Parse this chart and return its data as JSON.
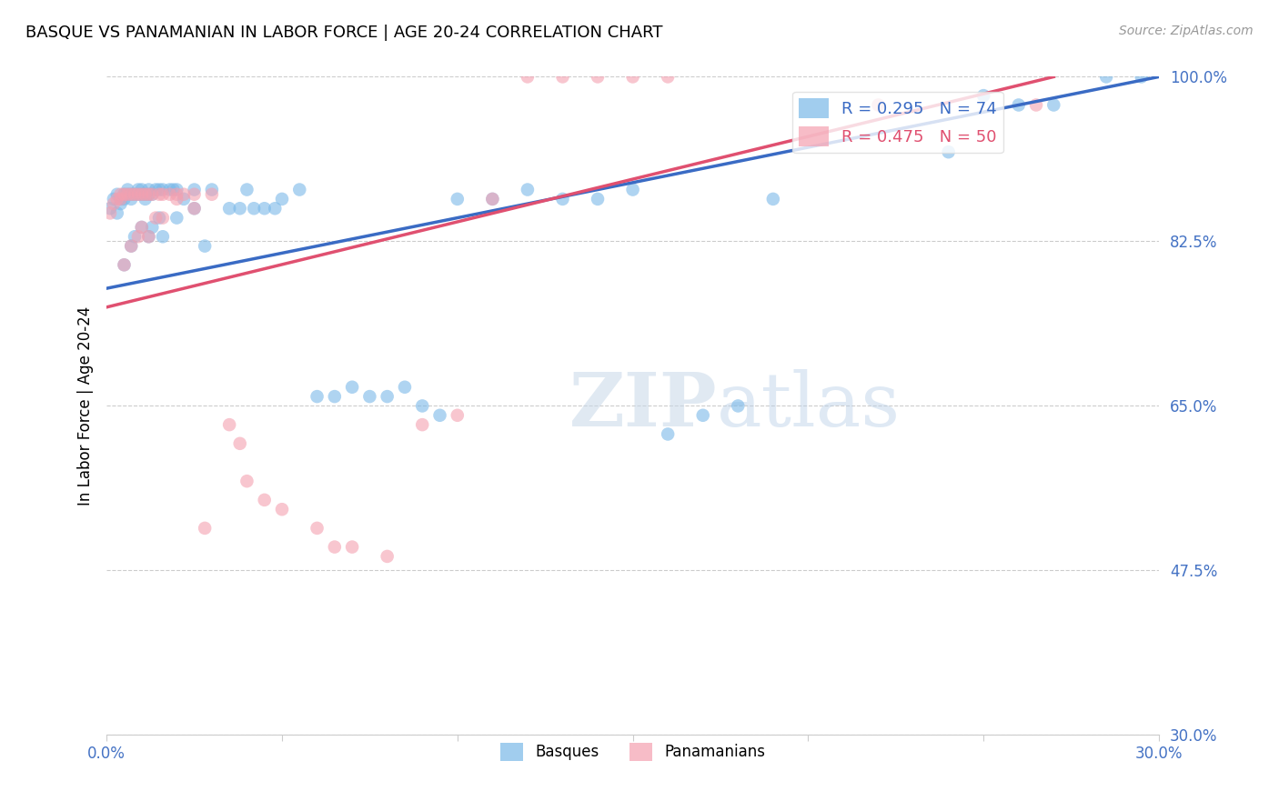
{
  "title": "BASQUE VS PANAMANIAN IN LABOR FORCE | AGE 20-24 CORRELATION CHART",
  "source": "Source: ZipAtlas.com",
  "ylabel": "In Labor Force | Age 20-24",
  "xmin": 0.0,
  "xmax": 0.3,
  "ymin": 0.3,
  "ymax": 1.0,
  "yticks": [
    1.0,
    0.825,
    0.65,
    0.475,
    0.3
  ],
  "ytick_labels": [
    "100.0%",
    "82.5%",
    "65.0%",
    "47.5%",
    "30.0%"
  ],
  "xtick_vals": [
    0.0,
    0.05,
    0.1,
    0.15,
    0.2,
    0.25,
    0.3
  ],
  "xtick_labels": [
    "0.0%",
    "",
    "",
    "",
    "",
    "",
    "30.0%"
  ],
  "blue_R": 0.295,
  "blue_N": 74,
  "pink_R": 0.475,
  "pink_N": 50,
  "blue_color": "#7ab8e8",
  "pink_color": "#f4a0b0",
  "blue_line_color": "#3a6bc4",
  "pink_line_color": "#e05070",
  "blue_line_x0": 0.0,
  "blue_line_y0": 0.775,
  "blue_line_x1": 0.3,
  "blue_line_y1": 1.0,
  "pink_line_x0": 0.0,
  "pink_line_y0": 0.755,
  "pink_line_x1": 0.27,
  "pink_line_y1": 1.0,
  "blue_points_x": [
    0.001,
    0.002,
    0.003,
    0.003,
    0.004,
    0.004,
    0.005,
    0.005,
    0.006,
    0.006,
    0.007,
    0.007,
    0.008,
    0.009,
    0.009,
    0.01,
    0.01,
    0.011,
    0.011,
    0.012,
    0.012,
    0.013,
    0.014,
    0.015,
    0.016,
    0.018,
    0.019,
    0.02,
    0.022,
    0.025,
    0.028,
    0.03,
    0.035,
    0.038,
    0.04,
    0.042,
    0.045,
    0.048,
    0.05,
    0.055,
    0.06,
    0.065,
    0.07,
    0.075,
    0.08,
    0.085,
    0.09,
    0.095,
    0.1,
    0.11,
    0.12,
    0.13,
    0.14,
    0.15,
    0.16,
    0.17,
    0.18,
    0.19,
    0.24,
    0.25,
    0.26,
    0.27,
    0.285,
    0.295,
    0.005,
    0.007,
    0.008,
    0.01,
    0.012,
    0.013,
    0.015,
    0.016,
    0.02,
    0.025
  ],
  "blue_points_y": [
    0.86,
    0.87,
    0.855,
    0.875,
    0.87,
    0.865,
    0.87,
    0.875,
    0.875,
    0.88,
    0.87,
    0.875,
    0.875,
    0.875,
    0.88,
    0.875,
    0.88,
    0.87,
    0.875,
    0.88,
    0.875,
    0.875,
    0.88,
    0.88,
    0.88,
    0.88,
    0.88,
    0.88,
    0.87,
    0.88,
    0.82,
    0.88,
    0.86,
    0.86,
    0.88,
    0.86,
    0.86,
    0.86,
    0.87,
    0.88,
    0.66,
    0.66,
    0.67,
    0.66,
    0.66,
    0.67,
    0.65,
    0.64,
    0.87,
    0.87,
    0.88,
    0.87,
    0.87,
    0.88,
    0.62,
    0.64,
    0.65,
    0.87,
    0.92,
    0.98,
    0.97,
    0.97,
    1.0,
    1.0,
    0.8,
    0.82,
    0.83,
    0.84,
    0.83,
    0.84,
    0.85,
    0.83,
    0.85,
    0.86
  ],
  "pink_points_x": [
    0.001,
    0.002,
    0.003,
    0.004,
    0.004,
    0.005,
    0.006,
    0.007,
    0.008,
    0.009,
    0.01,
    0.011,
    0.012,
    0.013,
    0.015,
    0.016,
    0.018,
    0.02,
    0.022,
    0.025,
    0.028,
    0.03,
    0.035,
    0.038,
    0.04,
    0.045,
    0.05,
    0.06,
    0.065,
    0.07,
    0.08,
    0.09,
    0.1,
    0.11,
    0.12,
    0.13,
    0.14,
    0.15,
    0.16,
    0.22,
    0.265,
    0.005,
    0.007,
    0.009,
    0.01,
    0.012,
    0.014,
    0.016,
    0.02,
    0.025
  ],
  "pink_points_y": [
    0.855,
    0.865,
    0.87,
    0.875,
    0.87,
    0.875,
    0.875,
    0.875,
    0.875,
    0.875,
    0.875,
    0.875,
    0.875,
    0.875,
    0.875,
    0.875,
    0.875,
    0.875,
    0.875,
    0.875,
    0.52,
    0.875,
    0.63,
    0.61,
    0.57,
    0.55,
    0.54,
    0.52,
    0.5,
    0.5,
    0.49,
    0.63,
    0.64,
    0.87,
    1.0,
    1.0,
    1.0,
    1.0,
    1.0,
    0.97,
    0.97,
    0.8,
    0.82,
    0.83,
    0.84,
    0.83,
    0.85,
    0.85,
    0.87,
    0.86
  ]
}
